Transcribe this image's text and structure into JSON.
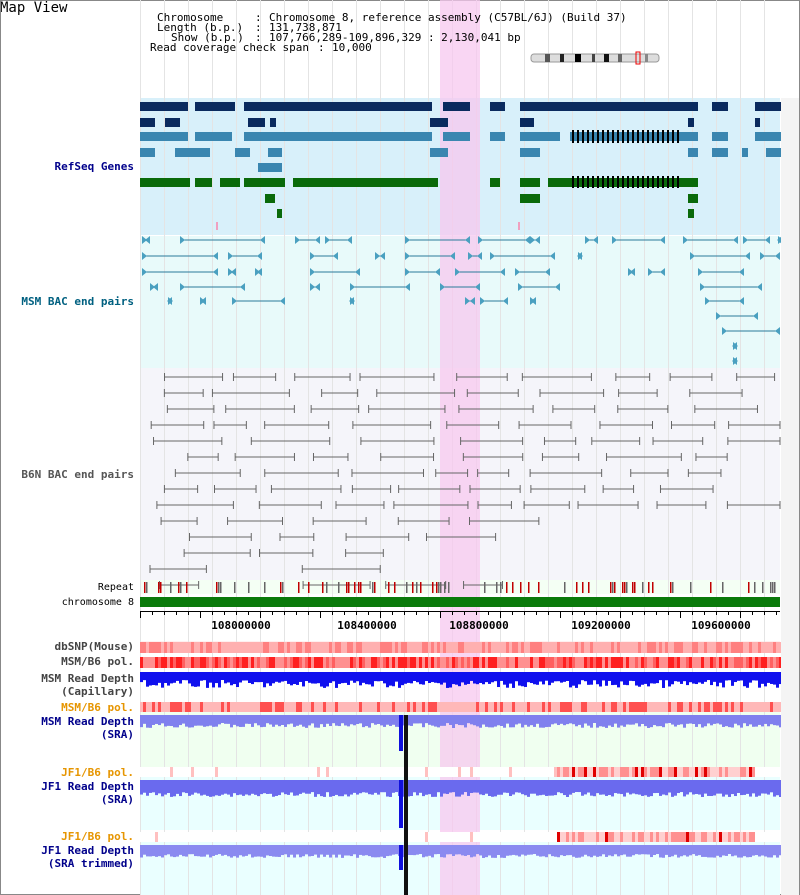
{
  "view_title": "Map View",
  "info": {
    "chromosome_label": "Chromosome",
    "chromosome_value": "Chromosome 8, reference assembly (C57BL/6J) (Build 37)",
    "length_label": "Length (b.p.)",
    "length_value": "131,738,871",
    "show_label": "Show (b.p.)",
    "show_value": "107,766,289-109,896,329 : 2,130,041 bp",
    "span_label": "Read coverage check span",
    "span_value": "10,000"
  },
  "tracks": {
    "refseq": "RefSeq Genes",
    "msm_bac": "MSM BAC end pairs",
    "b6n_bac": "B6N BAC end pairs",
    "repeat": "Repeat",
    "chromosome": "chromosome 8",
    "dbsnp": "dbSNP(Mouse)",
    "msm_b6_pol": "MSM/B6 pol.",
    "msm_depth_cap_1": "MSM Read Depth",
    "msm_depth_cap_2": "(Capillary)",
    "msm_b6_pol_sra": "MSM/B6 pol.",
    "msm_depth_sra_1": "MSM Read Depth",
    "msm_depth_sra_2": "(SRA)",
    "jf1_b6_pol": "JF1/B6 pol.",
    "jf1_depth_sra_1": "JF1 Read Depth",
    "jf1_depth_sra_2": "(SRA)",
    "jf1_b6_pol_trim": "JF1/B6 pol.",
    "jf1_depth_trim_1": "JF1 Read Depth",
    "jf1_depth_trim_2": "(SRA trimmed)"
  },
  "axis_ticks": [
    "108000000",
    "108400000",
    "108800000",
    "109200000",
    "109600000"
  ],
  "colors": {
    "refseq_label": "#00008b",
    "msm_bac_label": "#006080",
    "b6n_bac_label": "#555555",
    "orange_label": "#e69500",
    "blue_label": "#00008b",
    "highlight": "#f7c8ef"
  }
}
